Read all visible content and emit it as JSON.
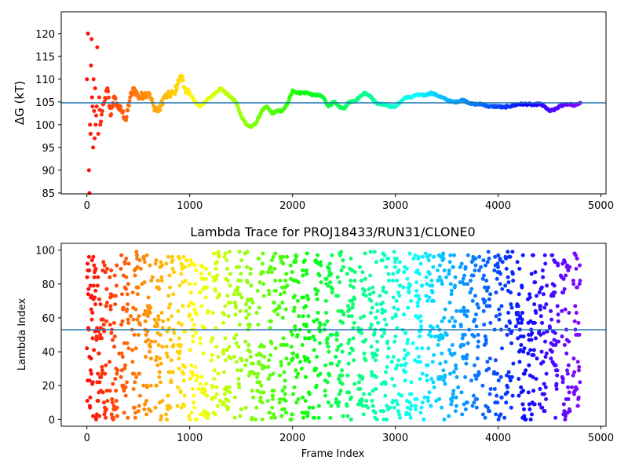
{
  "chart_data": [
    {
      "type": "scatter",
      "title": "",
      "xlabel": "",
      "ylabel": "ΔG (kT)",
      "xlim": [
        -250,
        5050
      ],
      "ylim": [
        84.8,
        124.8
      ],
      "xticks": [
        "0",
        "1000",
        "2000",
        "3000",
        "4000",
        "5000"
      ],
      "xtick_values": [
        0,
        1000,
        2000,
        3000,
        4000,
        5000
      ],
      "yticks": [
        "85",
        "90",
        "95",
        "100",
        "105",
        "110",
        "115",
        "120"
      ],
      "ytick_values": [
        85,
        90,
        95,
        100,
        105,
        110,
        115,
        120
      ],
      "colormap": "rainbow",
      "hline": 104.8,
      "hline_color": "#1f77b4",
      "series": [
        {
          "x": [
            0,
            10,
            20,
            25,
            30,
            35,
            40,
            45,
            50,
            55,
            60,
            65,
            70,
            75,
            80,
            85,
            90,
            95,
            100,
            110,
            120,
            130,
            150,
            170,
            200,
            230,
            260,
            300,
            340,
            380,
            420,
            460,
            500,
            550,
            600,
            650,
            700,
            750,
            800,
            850,
            900,
            930,
            960,
            1000,
            1050,
            1100,
            1150,
            1200,
            1250,
            1300,
            1350,
            1400,
            1450,
            1500,
            1550,
            1600,
            1650,
            1700,
            1750,
            1800,
            1850,
            1900,
            1950,
            2000,
            2050,
            2100,
            2150,
            2200,
            2250,
            2300,
            2350,
            2400,
            2450,
            2500,
            2550,
            2600,
            2650,
            2700,
            2750,
            2800,
            2850,
            2900,
            2950,
            3000,
            3050,
            3100,
            3150,
            3200,
            3250,
            3300,
            3350,
            3400,
            3450,
            3500,
            3550,
            3600,
            3650,
            3700,
            3750,
            3800,
            3850,
            3900,
            3950,
            4000,
            4050,
            4100,
            4150,
            4200,
            4250,
            4300,
            4350,
            4400,
            4450,
            4500,
            4550,
            4600,
            4650,
            4700,
            4750,
            4800
          ],
          "y": [
            110,
            120,
            90,
            85,
            100,
            98,
            113,
            118.8,
            106,
            104,
            95,
            110,
            103,
            97,
            108,
            100,
            102,
            104,
            117,
            98,
            106,
            100,
            103,
            105,
            108,
            102,
            106,
            104,
            103,
            101,
            106,
            108,
            106,
            106.5,
            107,
            104,
            103,
            106,
            106.5,
            107,
            110,
            110.5,
            107,
            107,
            105,
            104,
            105,
            106,
            107,
            108,
            107,
            106,
            105,
            102,
            100,
            99.5,
            100.5,
            103,
            104,
            102.5,
            103,
            103,
            104.5,
            107.5,
            107,
            107,
            107,
            106.5,
            106.5,
            106,
            104,
            105,
            104,
            103.5,
            105,
            105,
            106,
            107,
            106.5,
            105,
            104.5,
            104.5,
            104,
            104,
            105,
            106,
            106,
            106.5,
            106.5,
            106.5,
            107,
            106.5,
            106,
            105.5,
            105,
            105,
            105.5,
            105,
            104.5,
            104.5,
            104.5,
            104,
            104,
            104,
            103.8,
            104,
            104.2,
            104.5,
            104.5,
            104.5,
            104.3,
            104.6,
            104,
            103,
            103.3,
            104,
            104.5,
            104.5,
            104.2,
            104.8
          ]
        }
      ]
    },
    {
      "type": "scatter",
      "title": "Lambda Trace for PROJ18433/RUN31/CLONE0",
      "xlabel": "Frame Index",
      "ylabel": "Lambda Index",
      "xlim": [
        -250,
        5050
      ],
      "ylim": [
        -4,
        104
      ],
      "xticks": [
        "0",
        "1000",
        "2000",
        "3000",
        "4000",
        "5000"
      ],
      "xtick_values": [
        0,
        1000,
        2000,
        3000,
        4000,
        5000
      ],
      "yticks": [
        "0",
        "20",
        "40",
        "60",
        "80",
        "100"
      ],
      "ytick_values": [
        0,
        20,
        40,
        60,
        80,
        100
      ],
      "colormap": "rainbow",
      "hline": 53,
      "hline_color": "#1f77b4",
      "frames": 4800,
      "lambda_range": [
        0,
        99
      ]
    }
  ]
}
